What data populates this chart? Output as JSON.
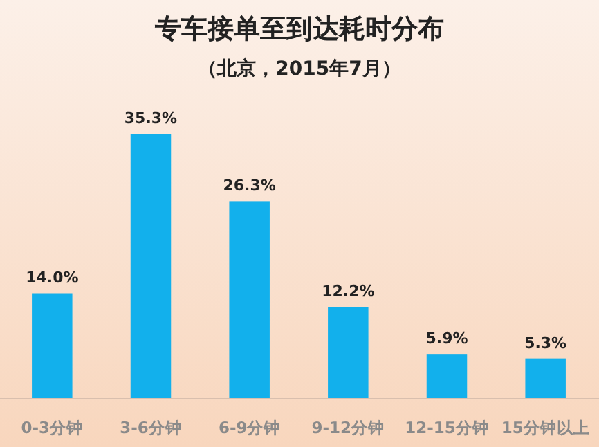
{
  "chart_data": {
    "type": "bar",
    "title": "专车接单至到达耗时分布",
    "subtitle": "（北京，2015年7月）",
    "categories": [
      "0-3分钟",
      "3-6分钟",
      "6-9分钟",
      "9-12分钟",
      "12-15分钟",
      "15分钟以上"
    ],
    "values": [
      14.0,
      35.3,
      26.3,
      12.2,
      5.9,
      5.3
    ],
    "value_labels": [
      "14.0%",
      "35.3%",
      "26.3%",
      "12.2%",
      "5.9%",
      "5.3%"
    ],
    "color": "#12b0ec"
  }
}
